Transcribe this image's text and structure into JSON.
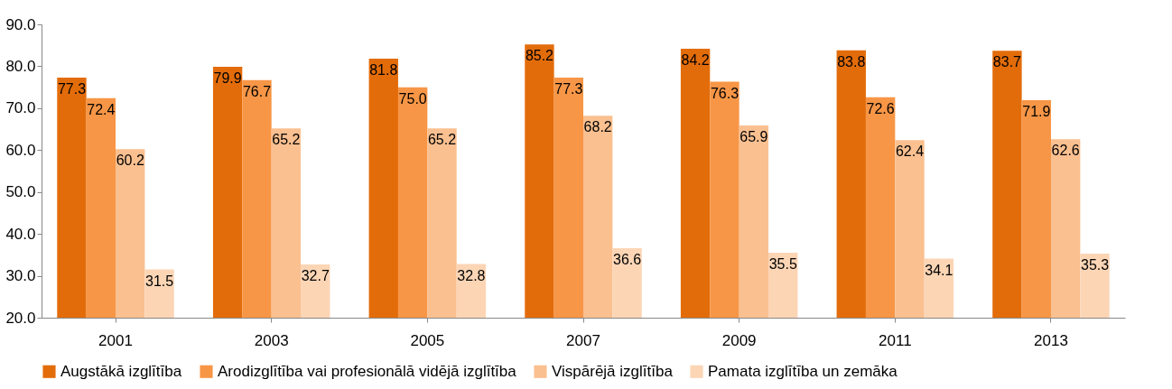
{
  "chart_data": {
    "type": "bar",
    "categories": [
      "2001",
      "2003",
      "2005",
      "2007",
      "2009",
      "2011",
      "2013"
    ],
    "series": [
      {
        "name": "Augstākā izglītība",
        "color": "#e36c0a",
        "values": [
          77.3,
          79.9,
          81.8,
          85.2,
          84.2,
          83.8,
          83.7
        ]
      },
      {
        "name": "Arodizglītība vai profesionālā vidējā izglītība",
        "color": "#f79646",
        "values": [
          72.4,
          76.7,
          75.0,
          77.3,
          76.3,
          72.6,
          71.9
        ],
        "value_labels": [
          "72.4",
          "76.7",
          "75.0",
          "77.3",
          "76.3",
          "72.6",
          "71.9"
        ]
      },
      {
        "name": "Vispārējā izglītība",
        "color": "#fac090",
        "values": [
          60.2,
          65.2,
          65.2,
          68.2,
          65.9,
          62.4,
          62.6
        ]
      },
      {
        "name": "Pamata izglītība un zemāka",
        "color": "#fcd5b5",
        "values": [
          31.5,
          32.7,
          32.8,
          36.6,
          35.5,
          34.1,
          35.3
        ]
      }
    ],
    "ylim": [
      20,
      90
    ],
    "yticks": [
      {
        "value": 20,
        "label": "20.0"
      },
      {
        "value": 30,
        "label": "30.0"
      },
      {
        "value": 40,
        "label": "40.0"
      },
      {
        "value": 50,
        "label": "50.0"
      },
      {
        "value": 60,
        "label": "60.0"
      },
      {
        "value": 70,
        "label": "70.0"
      },
      {
        "value": 80,
        "label": "80.0"
      },
      {
        "value": 90,
        "label": "90.0"
      }
    ],
    "data_labels": true,
    "grid": false,
    "legend": "bottom"
  }
}
